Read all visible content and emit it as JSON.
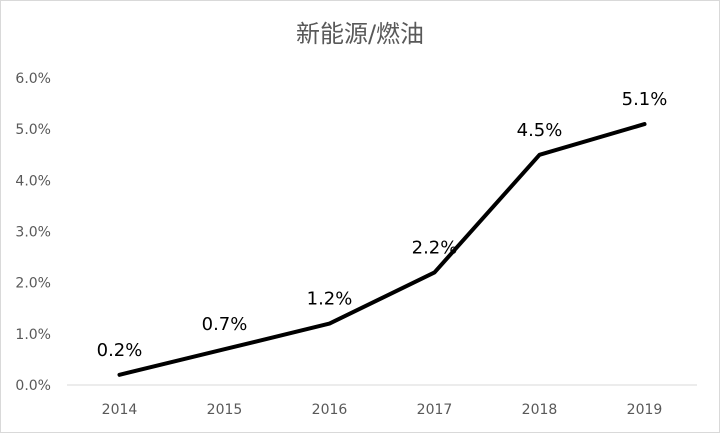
{
  "chart_data": {
    "type": "line",
    "title": "新能源/燃油",
    "xlabel": "",
    "ylabel": "",
    "categories": [
      "2014",
      "2015",
      "2016",
      "2017",
      "2018",
      "2019"
    ],
    "series": [
      {
        "values": [
          0.2,
          0.7,
          1.2,
          2.2,
          4.5,
          5.1
        ],
        "labels": [
          "0.2%",
          "0.7%",
          "1.2%",
          "2.2%",
          "4.5%",
          "5.1%"
        ]
      }
    ],
    "yticks": [
      "0.0%",
      "1.0%",
      "2.0%",
      "3.0%",
      "4.0%",
      "5.0%",
      "6.0%"
    ],
    "ylim": [
      0,
      6
    ],
    "grid": false,
    "legend": "none",
    "line_color": "#000000"
  }
}
